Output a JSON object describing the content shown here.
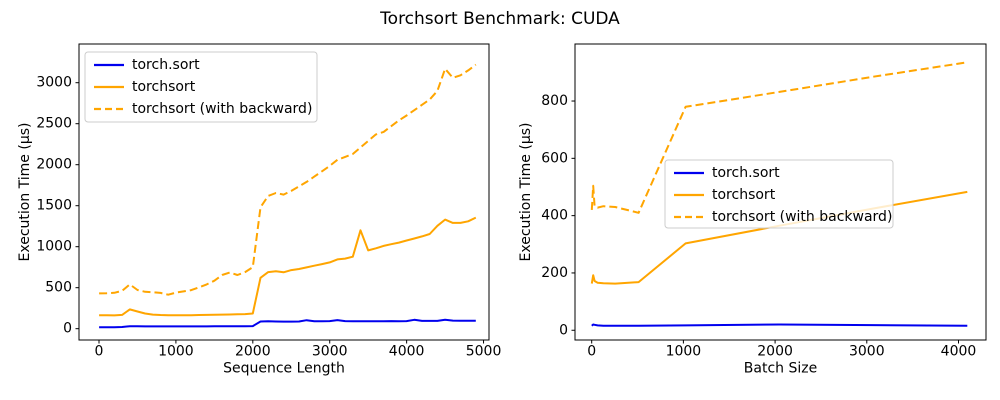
{
  "figure": {
    "title": "Torchsort Benchmark: CUDA",
    "background": "#ffffff",
    "colors": {
      "blue": "#0000ee",
      "orange": "#ffa500",
      "spine": "#000000",
      "legend_border": "#cccccc"
    }
  },
  "chart_data": [
    {
      "type": "line",
      "title": "",
      "xlabel": "Sequence Length",
      "ylabel": "Execution Time (µs)",
      "xlim": [
        -260,
        5071
      ],
      "ylim": [
        -138,
        3472
      ],
      "grid": false,
      "legend_position": "upper left",
      "xticks": [
        0,
        1000,
        2000,
        3000,
        4000,
        5000
      ],
      "yticks": [
        0,
        500,
        1000,
        1500,
        2000,
        2500,
        3000
      ],
      "x": [
        1,
        100,
        200,
        300,
        400,
        500,
        600,
        700,
        800,
        900,
        1000,
        1100,
        1200,
        1300,
        1400,
        1500,
        1600,
        1700,
        1800,
        1900,
        2000,
        2100,
        2200,
        2300,
        2400,
        2500,
        2600,
        2700,
        2800,
        2900,
        3000,
        3100,
        3200,
        3300,
        3400,
        3500,
        3600,
        3700,
        3800,
        3900,
        4000,
        4100,
        4200,
        4300,
        4400,
        4500,
        4600,
        4700,
        4800,
        4900
      ],
      "series": [
        {
          "name": "torch.sort",
          "color": "blue",
          "dash": false,
          "values": [
            18,
            18,
            18,
            20,
            30,
            30,
            28,
            28,
            28,
            28,
            28,
            28,
            28,
            28,
            28,
            30,
            30,
            30,
            30,
            30,
            32,
            88,
            90,
            88,
            86,
            86,
            88,
            103,
            90,
            90,
            92,
            105,
            92,
            90,
            90,
            90,
            90,
            90,
            92,
            90,
            92,
            108,
            95,
            95,
            95,
            110,
            98,
            96,
            96,
            96
          ]
        },
        {
          "name": "torchsort",
          "color": "orange",
          "dash": false,
          "values": [
            165,
            163,
            162,
            168,
            235,
            210,
            185,
            172,
            167,
            165,
            164,
            164,
            165,
            167,
            168,
            170,
            172,
            173,
            175,
            178,
            185,
            620,
            690,
            700,
            688,
            715,
            728,
            748,
            768,
            788,
            808,
            845,
            855,
            878,
            1200,
            955,
            980,
            1010,
            1030,
            1050,
            1075,
            1100,
            1125,
            1155,
            1255,
            1330,
            1290,
            1290,
            1310,
            1355
          ]
        },
        {
          "name": "torchsort (with backward)",
          "color": "orange",
          "dash": true,
          "values": [
            430,
            433,
            438,
            462,
            540,
            472,
            450,
            445,
            437,
            415,
            440,
            455,
            470,
            505,
            540,
            585,
            655,
            685,
            655,
            690,
            750,
            1480,
            1620,
            1655,
            1635,
            1680,
            1735,
            1790,
            1855,
            1920,
            1985,
            2060,
            2095,
            2130,
            2210,
            2290,
            2370,
            2400,
            2470,
            2540,
            2600,
            2665,
            2730,
            2795,
            2900,
            3170,
            3060,
            3090,
            3150,
            3220
          ]
        }
      ]
    },
    {
      "type": "line",
      "title": "",
      "xlabel": "Batch Size",
      "ylabel": "Execution Time (µs)",
      "xlim": [
        -182,
        4300
      ],
      "ylim": [
        -34,
        999
      ],
      "grid": false,
      "legend_position": "center",
      "xticks": [
        0,
        1000,
        2000,
        3000,
        4000
      ],
      "yticks": [
        0,
        200,
        400,
        600,
        800
      ],
      "x": [
        1,
        16,
        32,
        64,
        128,
        256,
        512,
        1024,
        2048,
        3072,
        4096
      ],
      "series": [
        {
          "name": "torch.sort",
          "color": "blue",
          "dash": false,
          "values": [
            16,
            20,
            19,
            17,
            16,
            16,
            16,
            17,
            20,
            18,
            16
          ]
        },
        {
          "name": "torchsort",
          "color": "orange",
          "dash": false,
          "values": [
            163,
            192,
            172,
            166,
            164,
            163,
            168,
            303,
            365,
            425,
            483
          ]
        },
        {
          "name": "torchsort (with backward)",
          "color": "orange",
          "dash": true,
          "values": [
            420,
            504,
            432,
            428,
            433,
            430,
            410,
            780,
            832,
            885,
            935
          ]
        }
      ]
    }
  ]
}
